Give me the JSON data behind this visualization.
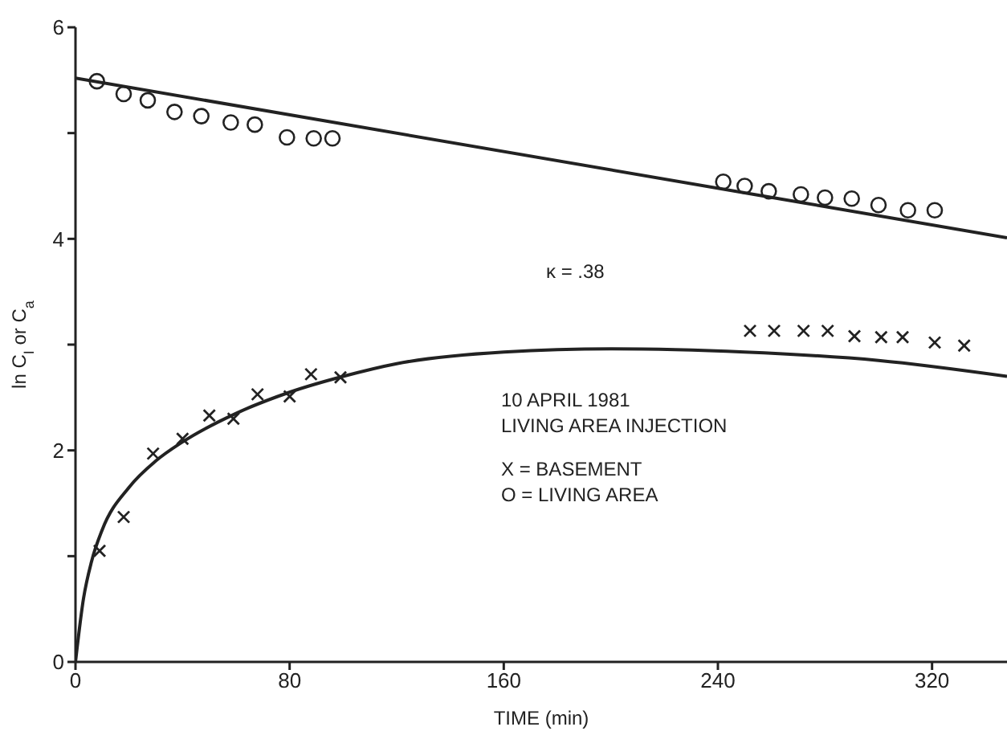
{
  "chart_data": {
    "type": "scatter",
    "xlabel": "TIME (min)",
    "ylabel": "ln C$_{I}$ or C$_{a}$",
    "xlim": [
      0,
      348
    ],
    "xticks": [
      0,
      80,
      160,
      240,
      320
    ],
    "ylim": [
      0,
      6
    ],
    "yticks": [
      0,
      {
        "value": 1,
        "label": null
      },
      2,
      {
        "value": 3,
        "label": null
      },
      4,
      {
        "value": 5,
        "label": null
      },
      {
        "value": 6,
        "label": "6"
      }
    ],
    "grid": false,
    "legend": false,
    "annotations": [
      "κ = .38",
      "10 APRIL 1981",
      "LIVING AREA INJECTION",
      "X = BASEMENT",
      "O = LIVING AREA"
    ],
    "series": [
      {
        "marker": "circle",
        "color": "#222222",
        "x": [
          8,
          18,
          27,
          37,
          47,
          58,
          67,
          79,
          89,
          96,
          242,
          250,
          259,
          271,
          280,
          290,
          300,
          311,
          321
        ],
        "values": [
          5.49,
          5.37,
          5.31,
          5.2,
          5.16,
          5.1,
          5.08,
          4.96,
          4.95,
          4.95,
          4.54,
          4.5,
          4.45,
          4.42,
          4.39,
          4.38,
          4.32,
          4.27,
          4.27
        ]
      },
      {
        "marker": "cross",
        "color": "#222222",
        "x": [
          9,
          18,
          29,
          40,
          50,
          59,
          68,
          80,
          88,
          99,
          252,
          261,
          272,
          281,
          291,
          301,
          309,
          321,
          332
        ],
        "values": [
          1.05,
          1.37,
          1.97,
          2.11,
          2.33,
          2.3,
          2.53,
          2.51,
          2.72,
          2.69,
          3.13,
          3.13,
          3.13,
          3.13,
          3.08,
          3.07,
          3.07,
          3.02,
          2.99
        ]
      },
      {
        "type": "line",
        "marker": "none",
        "color": "#222222",
        "x": [
          0,
          348
        ],
        "values": [
          5.52,
          4.01
        ]
      },
      {
        "type": "line",
        "marker": "none",
        "color": "#222222",
        "x": [
          0,
          3,
          6,
          10,
          20,
          30,
          40,
          60,
          80,
          100,
          120,
          160,
          200,
          250,
          300,
          348
        ],
        "values": [
          0,
          0.6,
          0.95,
          1.25,
          1.65,
          1.9,
          2.08,
          2.35,
          2.55,
          2.7,
          2.82,
          2.93,
          2.96,
          2.93,
          2.85,
          2.7
        ]
      }
    ]
  }
}
